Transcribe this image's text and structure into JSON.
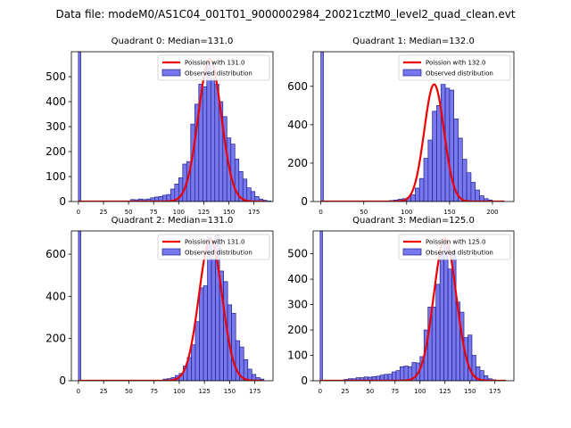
{
  "suptitle": "Data file: modeM0/AS1C04_001T01_9000002984_20021cztM0_level2_quad_clean.evt",
  "colors": {
    "bar_fill": "#7777ee",
    "bar_edge": "#22228a",
    "curve": "#ee0000"
  },
  "chart_data": [
    {
      "type": "bar",
      "title": "Quadrant 0: Median=131.0",
      "legend": {
        "curve": "Poission with 131.0",
        "bars": "Observed distribution"
      },
      "legend_position": "top-right",
      "bin_width": 4,
      "xlim": [
        -7,
        194
      ],
      "ylim": [
        0,
        600
      ],
      "xticks": [
        0,
        25,
        50,
        75,
        100,
        125,
        150,
        175
      ],
      "yticks": [
        0,
        100,
        200,
        300,
        400,
        500
      ],
      "zero_bin_value": 600,
      "bins": [
        [
          52,
          8
        ],
        [
          56,
          7
        ],
        [
          60,
          10
        ],
        [
          64,
          8
        ],
        [
          68,
          10
        ],
        [
          72,
          15
        ],
        [
          76,
          18
        ],
        [
          80,
          20
        ],
        [
          84,
          25
        ],
        [
          88,
          28
        ],
        [
          92,
          50
        ],
        [
          96,
          70
        ],
        [
          100,
          95
        ],
        [
          104,
          150
        ],
        [
          108,
          160
        ],
        [
          112,
          310
        ],
        [
          116,
          390
        ],
        [
          120,
          470
        ],
        [
          124,
          460
        ],
        [
          128,
          560
        ],
        [
          132,
          490
        ],
        [
          136,
          470
        ],
        [
          140,
          400
        ],
        [
          144,
          340
        ],
        [
          148,
          255
        ],
        [
          152,
          230
        ],
        [
          156,
          170
        ],
        [
          160,
          120
        ],
        [
          164,
          90
        ],
        [
          168,
          55
        ],
        [
          172,
          40
        ],
        [
          176,
          20
        ],
        [
          180,
          10
        ],
        [
          184,
          5
        ],
        [
          188,
          2
        ]
      ],
      "curve": {
        "mean": 131,
        "peak": 570,
        "x_start": 0,
        "x_end": 186
      }
    },
    {
      "type": "bar",
      "title": "Quadrant 1: Median=132.0",
      "legend": {
        "curve": "Poission with 132.0",
        "bars": "Observed distribution"
      },
      "legend_position": "top-right",
      "bin_width": 5,
      "xlim": [
        -9,
        225
      ],
      "ylim": [
        0,
        780
      ],
      "xticks": [
        0,
        50,
        100,
        150,
        200
      ],
      "yticks": [
        0,
        200,
        400,
        600
      ],
      "zero_bin_value": 780,
      "bins": [
        [
          80,
          5
        ],
        [
          85,
          8
        ],
        [
          90,
          12
        ],
        [
          95,
          15
        ],
        [
          100,
          20
        ],
        [
          105,
          35
        ],
        [
          110,
          70
        ],
        [
          115,
          120
        ],
        [
          120,
          225
        ],
        [
          125,
          320
        ],
        [
          130,
          470
        ],
        [
          135,
          500
        ],
        [
          140,
          610
        ],
        [
          145,
          590
        ],
        [
          150,
          580
        ],
        [
          155,
          430
        ],
        [
          160,
          330
        ],
        [
          165,
          220
        ],
        [
          170,
          150
        ],
        [
          175,
          100
        ],
        [
          180,
          60
        ],
        [
          185,
          30
        ],
        [
          190,
          15
        ],
        [
          195,
          8
        ]
      ],
      "curve": {
        "mean": 132,
        "peak": 610,
        "x_start": 0,
        "x_end": 214
      }
    },
    {
      "type": "bar",
      "title": "Quadrant 2: Median=131.0",
      "legend": {
        "curve": "Poission with 131.0",
        "bars": "Observed distribution"
      },
      "legend_position": "top-right",
      "bin_width": 4,
      "xlim": [
        -7,
        193
      ],
      "ylim": [
        0,
        710
      ],
      "xticks": [
        0,
        25,
        50,
        75,
        100,
        125,
        150,
        175
      ],
      "yticks": [
        0,
        200,
        400,
        600
      ],
      "zero_bin_value": 710,
      "bins": [
        [
          84,
          8
        ],
        [
          88,
          10
        ],
        [
          92,
          15
        ],
        [
          96,
          25
        ],
        [
          100,
          35
        ],
        [
          104,
          70
        ],
        [
          108,
          110
        ],
        [
          112,
          170
        ],
        [
          116,
          280
        ],
        [
          120,
          440
        ],
        [
          124,
          450
        ],
        [
          128,
          680
        ],
        [
          132,
          580
        ],
        [
          136,
          690
        ],
        [
          140,
          520
        ],
        [
          144,
          470
        ],
        [
          148,
          360
        ],
        [
          152,
          320
        ],
        [
          156,
          190
        ],
        [
          160,
          160
        ],
        [
          164,
          100
        ],
        [
          168,
          55
        ],
        [
          172,
          30
        ],
        [
          176,
          15
        ],
        [
          180,
          8
        ]
      ],
      "curve": {
        "mean": 131,
        "peak": 670,
        "x_start": 0,
        "x_end": 183
      }
    },
    {
      "type": "bar",
      "title": "Quadrant 3: Median=125.0",
      "legend": {
        "curve": "Poission with 125.0",
        "bars": "Observed distribution"
      },
      "legend_position": "top-right",
      "bin_width": 4,
      "xlim": [
        -7,
        194
      ],
      "ylim": [
        0,
        590
      ],
      "xticks": [
        0,
        25,
        50,
        75,
        100,
        125,
        150,
        175
      ],
      "yticks": [
        0,
        100,
        200,
        300,
        400,
        500
      ],
      "zero_bin_value": 590,
      "bins": [
        [
          24,
          5
        ],
        [
          28,
          8
        ],
        [
          32,
          8
        ],
        [
          36,
          12
        ],
        [
          40,
          12
        ],
        [
          44,
          15
        ],
        [
          48,
          14
        ],
        [
          52,
          16
        ],
        [
          56,
          18
        ],
        [
          60,
          22
        ],
        [
          64,
          25
        ],
        [
          68,
          26
        ],
        [
          72,
          35
        ],
        [
          76,
          40
        ],
        [
          80,
          55
        ],
        [
          84,
          58
        ],
        [
          88,
          55
        ],
        [
          92,
          72
        ],
        [
          96,
          70
        ],
        [
          100,
          95
        ],
        [
          104,
          200
        ],
        [
          108,
          290
        ],
        [
          112,
          290
        ],
        [
          116,
          380
        ],
        [
          120,
          500
        ],
        [
          124,
          540
        ],
        [
          128,
          440
        ],
        [
          132,
          510
        ],
        [
          136,
          310
        ],
        [
          140,
          270
        ],
        [
          144,
          170
        ],
        [
          148,
          180
        ],
        [
          152,
          100
        ],
        [
          156,
          55
        ],
        [
          160,
          40
        ],
        [
          164,
          20
        ],
        [
          168,
          8
        ],
        [
          172,
          4
        ]
      ],
      "curve": {
        "mean": 125,
        "peak": 560,
        "x_start": 0,
        "x_end": 186
      }
    }
  ]
}
